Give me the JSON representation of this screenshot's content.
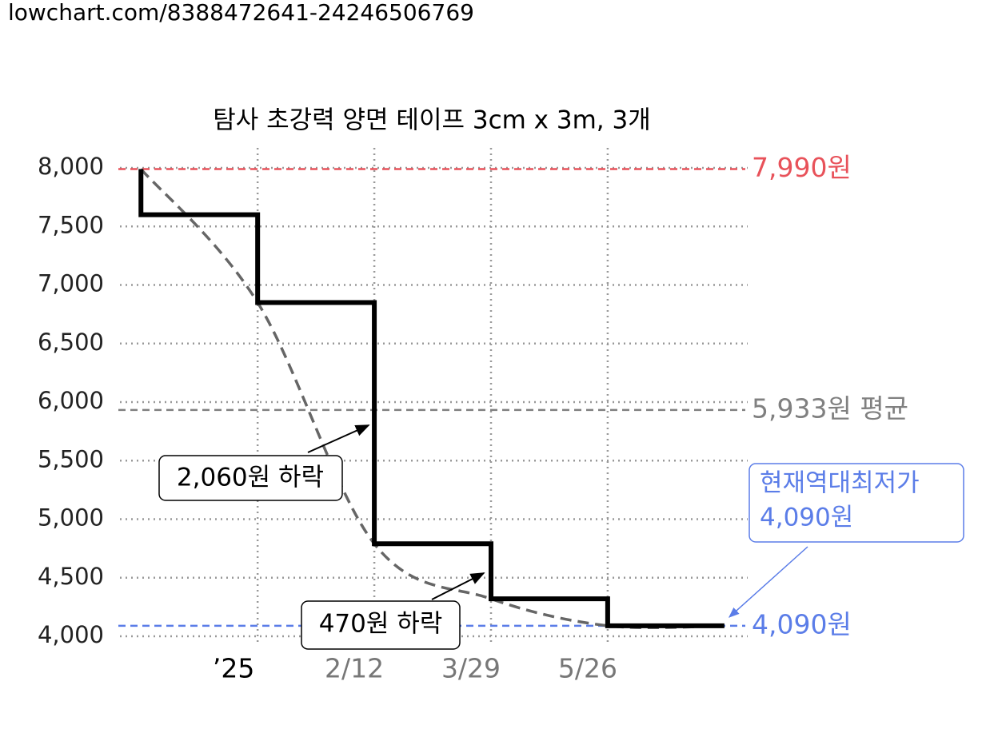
{
  "chart_data": {
    "type": "step",
    "source": "lowchart.com/8388472641-24246506769",
    "title": "탐사 초강력 양면 테이프 3cm x 3m, 3개",
    "x": [
      0,
      0,
      1,
      2,
      3,
      4,
      5
    ],
    "values": [
      7990,
      7600,
      6850,
      4790,
      4320,
      4090,
      4090
    ],
    "color": "#000000",
    "trend_color": "#666666",
    "xlim": [
      -0.18,
      5.2
    ],
    "xticks": [
      {
        "value": 1,
        "label": "’25"
      },
      {
        "value": 2,
        "label": "2/12"
      },
      {
        "value": 3,
        "label": "3/29"
      },
      {
        "value": 4,
        "label": "5/26"
      }
    ],
    "ylim": [
      4000,
      8000
    ],
    "yticks": [
      {
        "value": 4000,
        "label": "4,000"
      },
      {
        "value": 4500,
        "label": "4,500"
      },
      {
        "value": 5000,
        "label": "5,000"
      },
      {
        "value": 5500,
        "label": "5,500"
      },
      {
        "value": 6000,
        "label": "6,000"
      },
      {
        "value": 6500,
        "label": "6,500"
      },
      {
        "value": 7000,
        "label": "7,000"
      },
      {
        "value": 7500,
        "label": "7,500"
      },
      {
        "value": 8000,
        "label": "8,000"
      }
    ],
    "grid": true,
    "reference_lines": [
      {
        "value": 7990,
        "label": "7,990원",
        "color": "#e8525a"
      },
      {
        "value": 5933,
        "label": "5,933원 평균",
        "color": "#808080"
      },
      {
        "value": 4090,
        "label": "4,090원",
        "color": "#5b7de8"
      }
    ],
    "annotations": [
      {
        "text": "2,060원 하락"
      },
      {
        "text": "470원 하락"
      },
      {
        "lines": [
          "현재역대최저가",
          "4,090원"
        ],
        "color": "#5b7de8"
      }
    ]
  }
}
